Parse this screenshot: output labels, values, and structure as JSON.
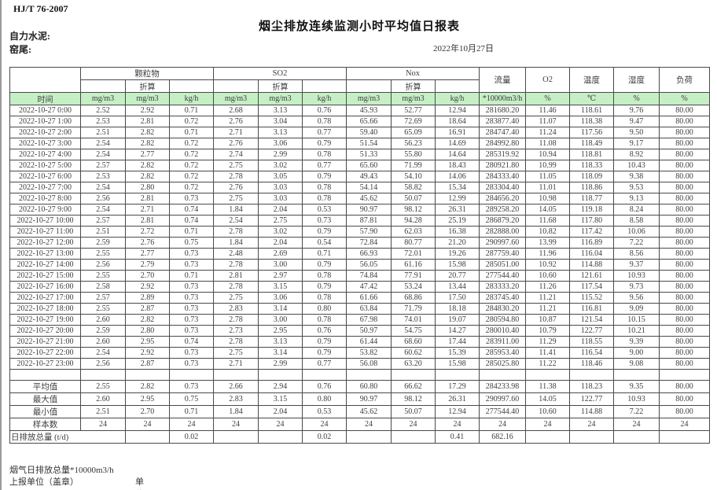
{
  "page": {
    "doc_code": "HJ/T  76-2007",
    "title": "烟尘排放连续监测小时平均值日报表",
    "company_label": "自力水泥:",
    "site_label": "窑尾:",
    "date": "2022年10月27日"
  },
  "table": {
    "header": {
      "time": "时间",
      "groups": [
        {
          "name": "颗粒物",
          "sub": "折算"
        },
        {
          "name": "SO2",
          "sub": "折算"
        },
        {
          "name": "Nox",
          "sub": "折算"
        }
      ],
      "singles": [
        "流量",
        "O2",
        "温度",
        "湿度",
        "负荷"
      ],
      "units": [
        "mg/m3",
        "mg/m3",
        "kg/h",
        "mg/m3",
        "mg/m3",
        "kg/h",
        "mg/m3",
        "mg/m3",
        "kg/h",
        "*10000m3/h",
        "%",
        "℃",
        "%",
        "%"
      ]
    },
    "rows": [
      {
        "time": "2022-10-27  0:00",
        "values": [
          "2.52",
          "2.92",
          "0.71",
          "2.68",
          "3.13",
          "0.76",
          "45.93",
          "52.77",
          "12.94",
          "281680.20",
          "11.46",
          "118.61",
          "9.76",
          "80.00"
        ]
      },
      {
        "time": "2022-10-27  1:00",
        "values": [
          "2.53",
          "2.81",
          "0.72",
          "2.76",
          "3.04",
          "0.78",
          "65.66",
          "72.69",
          "18.64",
          "283877.40",
          "11.07",
          "118.38",
          "9.47",
          "80.00"
        ]
      },
      {
        "time": "2022-10-27  2:00",
        "values": [
          "2.51",
          "2.82",
          "0.71",
          "2.71",
          "3.13",
          "0.77",
          "59.40",
          "65.09",
          "16.91",
          "284747.40",
          "11.24",
          "117.56",
          "9.50",
          "80.00"
        ]
      },
      {
        "time": "2022-10-27  3:00",
        "values": [
          "2.54",
          "2.82",
          "0.72",
          "2.76",
          "3.06",
          "0.79",
          "51.54",
          "56.23",
          "14.69",
          "284992.80",
          "11.08",
          "118.49",
          "9.17",
          "80.00"
        ]
      },
      {
        "time": "2022-10-27  4:00",
        "values": [
          "2.54",
          "2.77",
          "0.72",
          "2.74",
          "2.99",
          "0.78",
          "51.33",
          "55.80",
          "14.64",
          "285319.92",
          "10.94",
          "118.81",
          "8.92",
          "80.00"
        ]
      },
      {
        "time": "2022-10-27  5:00",
        "values": [
          "2.57",
          "2.82",
          "0.72",
          "2.75",
          "3.02",
          "0.77",
          "65.60",
          "71.99",
          "18.43",
          "280921.80",
          "10.99",
          "118.33",
          "10.43",
          "80.00"
        ]
      },
      {
        "time": "2022-10-27  6:00",
        "values": [
          "2.53",
          "2.82",
          "0.72",
          "2.78",
          "3.05",
          "0.79",
          "49.43",
          "54.10",
          "14.06",
          "284333.40",
          "11.05",
          "118.09",
          "9.38",
          "80.00"
        ]
      },
      {
        "time": "2022-10-27  7:00",
        "values": [
          "2.54",
          "2.80",
          "0.72",
          "2.76",
          "3.03",
          "0.78",
          "54.14",
          "58.82",
          "15.34",
          "283304.40",
          "11.01",
          "118.86",
          "9.53",
          "80.00"
        ]
      },
      {
        "time": "2022-10-27  8:00",
        "values": [
          "2.56",
          "2.81",
          "0.73",
          "2.75",
          "3.03",
          "0.78",
          "45.62",
          "50.07",
          "12.99",
          "284656.20",
          "10.98",
          "118.77",
          "9.13",
          "80.00"
        ]
      },
      {
        "time": "2022-10-27  9:00",
        "values": [
          "2.54",
          "2.71",
          "0.74",
          "1.84",
          "2.04",
          "0.53",
          "90.97",
          "98.12",
          "26.31",
          "289258.20",
          "14.05",
          "119.18",
          "8.24",
          "80.00"
        ]
      },
      {
        "time": "2022-10-27 10:00",
        "values": [
          "2.57",
          "2.81",
          "0.74",
          "2.54",
          "2.75",
          "0.73",
          "87.81",
          "94.28",
          "25.19",
          "286879.20",
          "11.68",
          "117.80",
          "8.58",
          "80.00"
        ]
      },
      {
        "time": "2022-10-27 11:00",
        "values": [
          "2.51",
          "2.72",
          "0.71",
          "2.78",
          "3.02",
          "0.79",
          "57.90",
          "62.03",
          "16.38",
          "282888.00",
          "10.82",
          "117.42",
          "10.06",
          "80.00"
        ]
      },
      {
        "time": "2022-10-27 12:00",
        "values": [
          "2.59",
          "2.76",
          "0.75",
          "1.84",
          "2.04",
          "0.54",
          "72.84",
          "80.77",
          "21.20",
          "290997.60",
          "13.99",
          "116.89",
          "7.22",
          "80.00"
        ]
      },
      {
        "time": "2022-10-27 13:00",
        "values": [
          "2.55",
          "2.77",
          "0.73",
          "2.48",
          "2.69",
          "0.71",
          "66.93",
          "72.01",
          "19.26",
          "287759.40",
          "11.96",
          "116.04",
          "8.56",
          "80.00"
        ]
      },
      {
        "time": "2022-10-27 14:00",
        "values": [
          "2.56",
          "2.79",
          "0.73",
          "2.78",
          "3.00",
          "0.79",
          "56.05",
          "61.16",
          "15.98",
          "285051.00",
          "10.92",
          "114.88",
          "9.37",
          "80.00"
        ]
      },
      {
        "time": "2022-10-27 15:00",
        "values": [
          "2.55",
          "2.70",
          "0.71",
          "2.81",
          "2.97",
          "0.78",
          "74.84",
          "77.91",
          "20.77",
          "277544.40",
          "10.60",
          "121.61",
          "10.93",
          "80.00"
        ]
      },
      {
        "time": "2022-10-27 16:00",
        "values": [
          "2.58",
          "2.92",
          "0.73",
          "2.78",
          "3.15",
          "0.79",
          "47.42",
          "53.24",
          "13.44",
          "283333.20",
          "11.26",
          "117.54",
          "9.73",
          "80.00"
        ]
      },
      {
        "time": "2022-10-27 17:00",
        "values": [
          "2.57",
          "2.89",
          "0.73",
          "2.75",
          "3.06",
          "0.78",
          "61.66",
          "68.86",
          "17.50",
          "283745.40",
          "11.21",
          "115.52",
          "9.56",
          "80.00"
        ]
      },
      {
        "time": "2022-10-27 18:00",
        "values": [
          "2.55",
          "2.87",
          "0.73",
          "2.83",
          "3.14",
          "0.80",
          "63.84",
          "71.79",
          "18.18",
          "284830.20",
          "11.21",
          "116.81",
          "9.09",
          "80.00"
        ]
      },
      {
        "time": "2022-10-27 19:00",
        "values": [
          "2.60",
          "2.82",
          "0.73",
          "2.78",
          "3.00",
          "0.78",
          "67.98",
          "74.01",
          "19.07",
          "280594.80",
          "10.87",
          "121.54",
          "10.15",
          "80.00"
        ]
      },
      {
        "time": "2022-10-27 20:00",
        "values": [
          "2.59",
          "2.80",
          "0.73",
          "2.73",
          "2.95",
          "0.76",
          "50.97",
          "54.75",
          "14.27",
          "280010.40",
          "10.79",
          "122.77",
          "10.21",
          "80.00"
        ]
      },
      {
        "time": "2022-10-27 21:00",
        "values": [
          "2.60",
          "2.95",
          "0.74",
          "2.78",
          "3.13",
          "0.79",
          "61.44",
          "68.60",
          "17.44",
          "283911.00",
          "11.29",
          "118.55",
          "9.39",
          "80.00"
        ]
      },
      {
        "time": "2022-10-27 22:00",
        "values": [
          "2.54",
          "2.92",
          "0.73",
          "2.75",
          "3.14",
          "0.79",
          "53.82",
          "60.62",
          "15.39",
          "285953.40",
          "11.41",
          "116.54",
          "9.00",
          "80.00"
        ]
      },
      {
        "time": "2022-10-27 23:00",
        "values": [
          "2.56",
          "2.87",
          "0.73",
          "2.71",
          "2.99",
          "0.77",
          "56.08",
          "63.20",
          "15.98",
          "285025.80",
          "11.22",
          "118.46",
          "9.08",
          "80.00"
        ]
      }
    ],
    "summary": [
      {
        "label": "平均值",
        "values": [
          "2.55",
          "2.82",
          "0.73",
          "2.66",
          "2.94",
          "0.76",
          "60.80",
          "66.62",
          "17.29",
          "284233.98",
          "11.38",
          "118.23",
          "9.35",
          "80.00"
        ]
      },
      {
        "label": "最大值",
        "values": [
          "2.60",
          "2.95",
          "0.75",
          "2.83",
          "3.15",
          "0.80",
          "90.97",
          "98.12",
          "26.31",
          "290997.60",
          "14.05",
          "122.77",
          "10.93",
          "80.00"
        ]
      },
      {
        "label": "最小值",
        "values": [
          "2.51",
          "2.70",
          "0.71",
          "1.84",
          "2.04",
          "0.53",
          "45.62",
          "50.07",
          "12.94",
          "277544.40",
          "10.60",
          "114.88",
          "7.22",
          "80.00"
        ]
      },
      {
        "label": "样本数",
        "values": [
          "24",
          "24",
          "24",
          "24",
          "24",
          "24",
          "24",
          "24",
          "24",
          "24",
          "24",
          "24",
          "24",
          "24"
        ]
      },
      {
        "label": "日排放总量 (t/d)",
        "label_colspan": 2,
        "values": [
          "",
          "0.02",
          "",
          "",
          "0.02",
          "",
          "",
          "0.41",
          "682.16",
          "",
          "",
          "",
          ""
        ]
      }
    ]
  },
  "footer": {
    "line1": "烟气日排放总量*10000m3/h",
    "line2_left": "上报单位（盖章）",
    "line2_right": "单位"
  }
}
